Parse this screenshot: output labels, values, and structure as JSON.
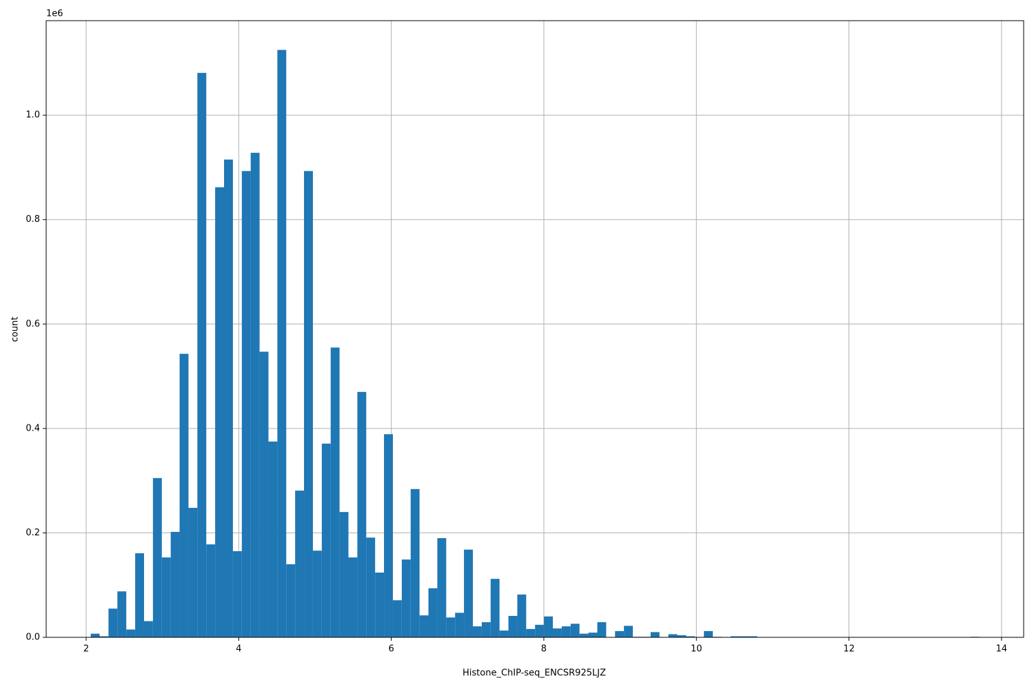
{
  "chart_data": {
    "type": "histogram",
    "xlabel": "Histone_ChIP-seq_ENCSR925LJZ",
    "ylabel": "count",
    "y_offset_label": "1e6",
    "color": "#1f77b4",
    "grid": true,
    "bins": [
      2.06,
      2.1765,
      2.293,
      2.4095,
      2.526,
      2.6425,
      2.759,
      2.8755,
      2.992,
      3.1085,
      3.225,
      3.3415,
      3.458,
      3.5745,
      3.691,
      3.8075,
      3.924,
      4.0405,
      4.157,
      4.2735,
      4.39,
      4.5065,
      4.623,
      4.7395,
      4.856,
      4.9725,
      5.089,
      5.2055,
      5.322,
      5.4385,
      5.555,
      5.6715,
      5.788,
      5.9045,
      6.021,
      6.1375,
      6.254,
      6.3705,
      6.487,
      6.6035,
      6.72,
      6.8365,
      6.953,
      7.0695,
      7.186,
      7.3025,
      7.419,
      7.5355,
      7.652,
      7.7685,
      7.885,
      8.0015,
      8.118,
      8.2345,
      8.351,
      8.4675,
      8.584,
      8.7005,
      8.817,
      8.9335,
      9.05,
      9.1665,
      9.283,
      9.3995,
      9.516,
      9.6325,
      9.749,
      9.8655,
      9.982,
      10.0985,
      10.215,
      10.3315,
      10.448,
      10.5645,
      10.681,
      10.7975,
      10.914,
      11.0305,
      11.147,
      11.2635,
      11.38,
      11.4965,
      11.613,
      11.7295,
      11.846,
      11.9625,
      12.079,
      12.1955,
      12.312,
      12.4285,
      12.545,
      12.6615,
      12.778,
      12.8945,
      13.011,
      13.1275,
      13.244,
      13.3605,
      13.477,
      13.5935,
      13.71
    ],
    "counts": [
      7000,
      2000,
      55000,
      88000,
      15000,
      161000,
      31000,
      305000,
      153000,
      202000,
      543000,
      248000,
      1081000,
      178000,
      862000,
      915000,
      165000,
      893000,
      928000,
      547000,
      375000,
      1125000,
      140000,
      281000,
      893000,
      166000,
      371000,
      555000,
      240000,
      153000,
      470000,
      191000,
      124000,
      389000,
      71000,
      149000,
      284000,
      42000,
      94000,
      190000,
      38000,
      47000,
      168000,
      21000,
      29000,
      112000,
      13000,
      41000,
      82000,
      16000,
      24000,
      40000,
      17000,
      21000,
      26000,
      7000,
      9000,
      29000,
      0,
      12000,
      22000,
      1000,
      1000,
      10000,
      0,
      6000,
      4000,
      2000,
      0,
      12000,
      1000,
      0,
      2000,
      2000,
      2000,
      0,
      0,
      0,
      0,
      0,
      0,
      0,
      0,
      0,
      0,
      0,
      0,
      0,
      0,
      0,
      0,
      0,
      0,
      0,
      0,
      0,
      0,
      0,
      0,
      1000
    ],
    "xlim": [
      1.476,
      14.29
    ],
    "xticks": [
      2,
      4,
      6,
      8,
      10,
      12,
      14
    ],
    "ylim": [
      0,
      1181000
    ],
    "yticks": [
      {
        "value": 0,
        "label": "0.0"
      },
      {
        "value": 200000,
        "label": "0.2"
      },
      {
        "value": 400000,
        "label": "0.4"
      },
      {
        "value": 600000,
        "label": "0.6"
      },
      {
        "value": 800000,
        "label": "0.8"
      },
      {
        "value": 1000000,
        "label": "1.0"
      }
    ]
  }
}
